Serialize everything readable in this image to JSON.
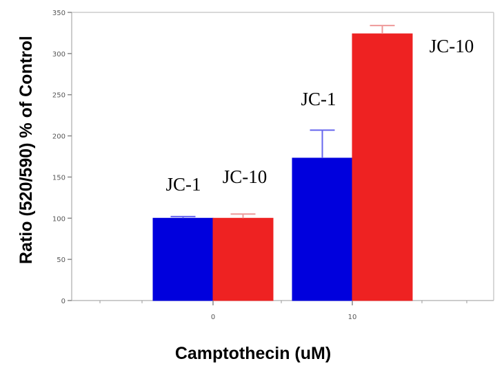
{
  "chart_data": {
    "type": "bar",
    "title": "",
    "xlabel": "Camptothecin (uM)",
    "ylabel": "Ratio (520/590) % of Control",
    "categories": [
      "0",
      "10"
    ],
    "ylim": [
      0,
      350
    ],
    "yticks": [
      "0",
      "50",
      "100",
      "150",
      "200",
      "250",
      "300",
      "350"
    ],
    "series": [
      {
        "name": "JC-1",
        "color": "#0000dd",
        "error_color": "#6666ee",
        "values": [
          100,
          173
        ],
        "errors": [
          2,
          34
        ]
      },
      {
        "name": "JC-10",
        "color": "#ee2222",
        "error_color": "#ee9999",
        "values": [
          100,
          324
        ],
        "errors": [
          5,
          10
        ]
      }
    ],
    "annotations": [
      "JC-1",
      "JC-10",
      "JC-1",
      "JC-10"
    ]
  }
}
